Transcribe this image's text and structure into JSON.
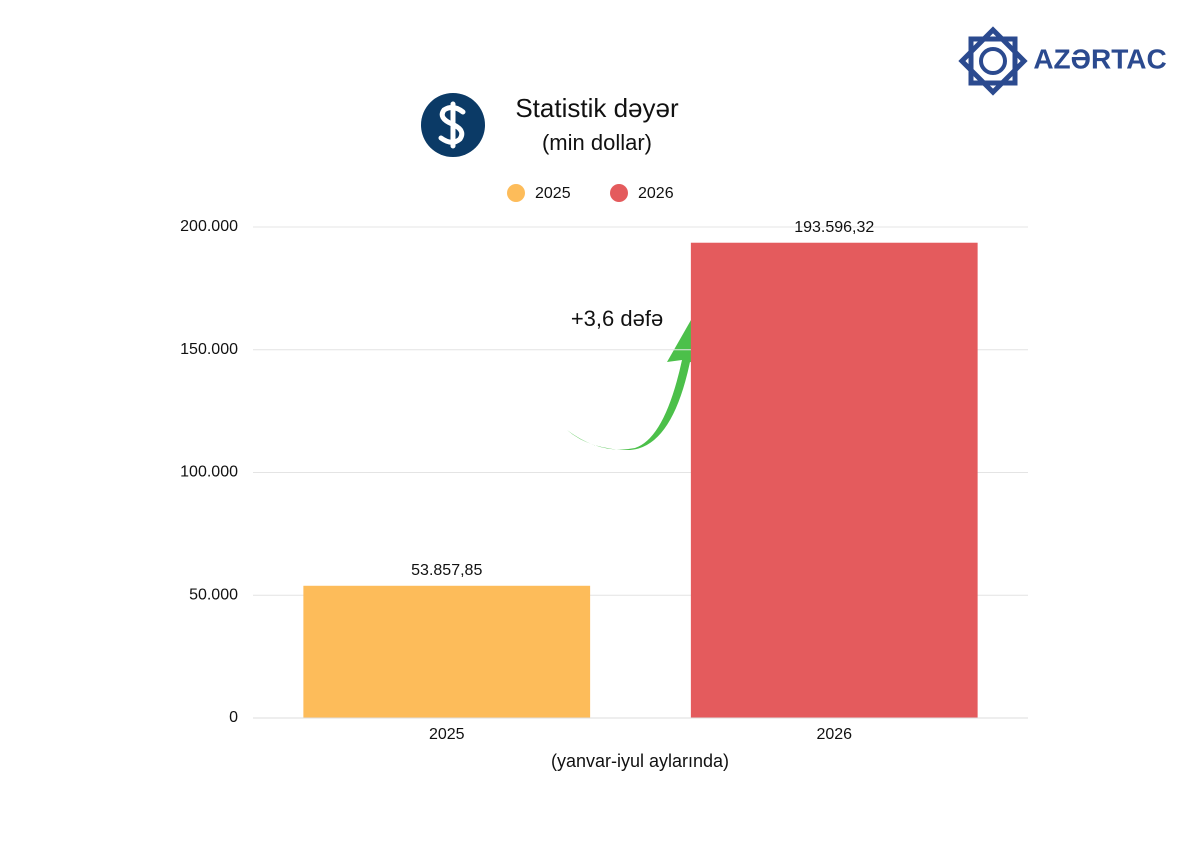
{
  "logo": "AZƏRTAC",
  "chart_data": {
    "type": "bar",
    "title": "Statistik dəyər",
    "subtitle": "(min dollar)",
    "x_label": "(yanvar-iyul aylarında)",
    "annotation": "+3,6 dəfə",
    "categories": [
      "2025",
      "2026"
    ],
    "series": [
      {
        "name": "2025",
        "color": "#fdbc5a",
        "values": [
          53857.85,
          null
        ],
        "value_labels": [
          "53.857,85",
          null
        ]
      },
      {
        "name": "2026",
        "color": "#e45b5d",
        "values": [
          null,
          193596.32
        ],
        "value_labels": [
          null,
          "193.596,32"
        ]
      }
    ],
    "ylim": [
      0,
      200000
    ],
    "yticks": [
      0,
      {
        "value": 50000,
        "label": "50.000"
      },
      {
        "value": 100000,
        "label": "100.000"
      },
      {
        "value": 150000,
        "label": "150.000"
      },
      {
        "value": 200000,
        "label": "200.000"
      }
    ],
    "grid": true
  }
}
